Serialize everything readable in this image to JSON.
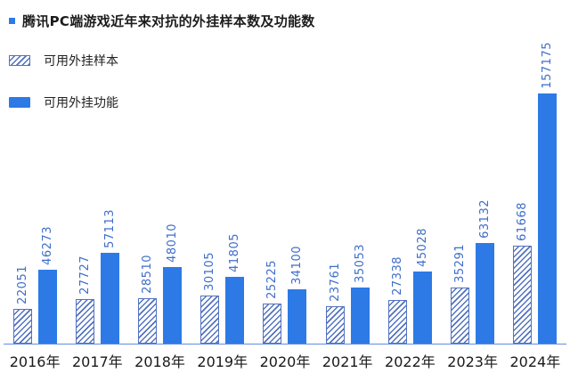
{
  "title": {
    "text": "腾讯PC端游戏近年来对抗的外挂样本数及功能数"
  },
  "legend": {
    "items": [
      {
        "label": "可用外挂样本",
        "swatch": "hatched-swatch"
      },
      {
        "label": "可用外挂功能",
        "swatch": "solid-swatch"
      }
    ]
  },
  "colors": {
    "solid_bar": "#2d7ae6",
    "hatch_line": "#5272c0",
    "value_label": "#3e6dc9",
    "axis_line": "#5e8ce2",
    "title_text": "#1c1c1c"
  },
  "chart_data": {
    "type": "bar",
    "title": "腾讯PC端游戏近年来对抗的外挂样本数及功能数",
    "categories": [
      "2016年",
      "2017年",
      "2018年",
      "2019年",
      "2020年",
      "2021年",
      "2022年",
      "2023年",
      "2024年"
    ],
    "series": [
      {
        "name": "可用外挂样本",
        "style": "hatched",
        "values": [
          22051,
          27727,
          28510,
          30105,
          25225,
          23761,
          27338,
          35291,
          61668
        ]
      },
      {
        "name": "可用外挂功能",
        "style": "solid",
        "values": [
          46273,
          57113,
          48010,
          41805,
          34100,
          35053,
          45028,
          63132,
          157175
        ]
      }
    ],
    "value_labels": "rotated-vertical-above-bars",
    "legend_position": "top-left",
    "grid": false,
    "ylim": [
      0,
      157175
    ],
    "y_axis_shown": false
  }
}
